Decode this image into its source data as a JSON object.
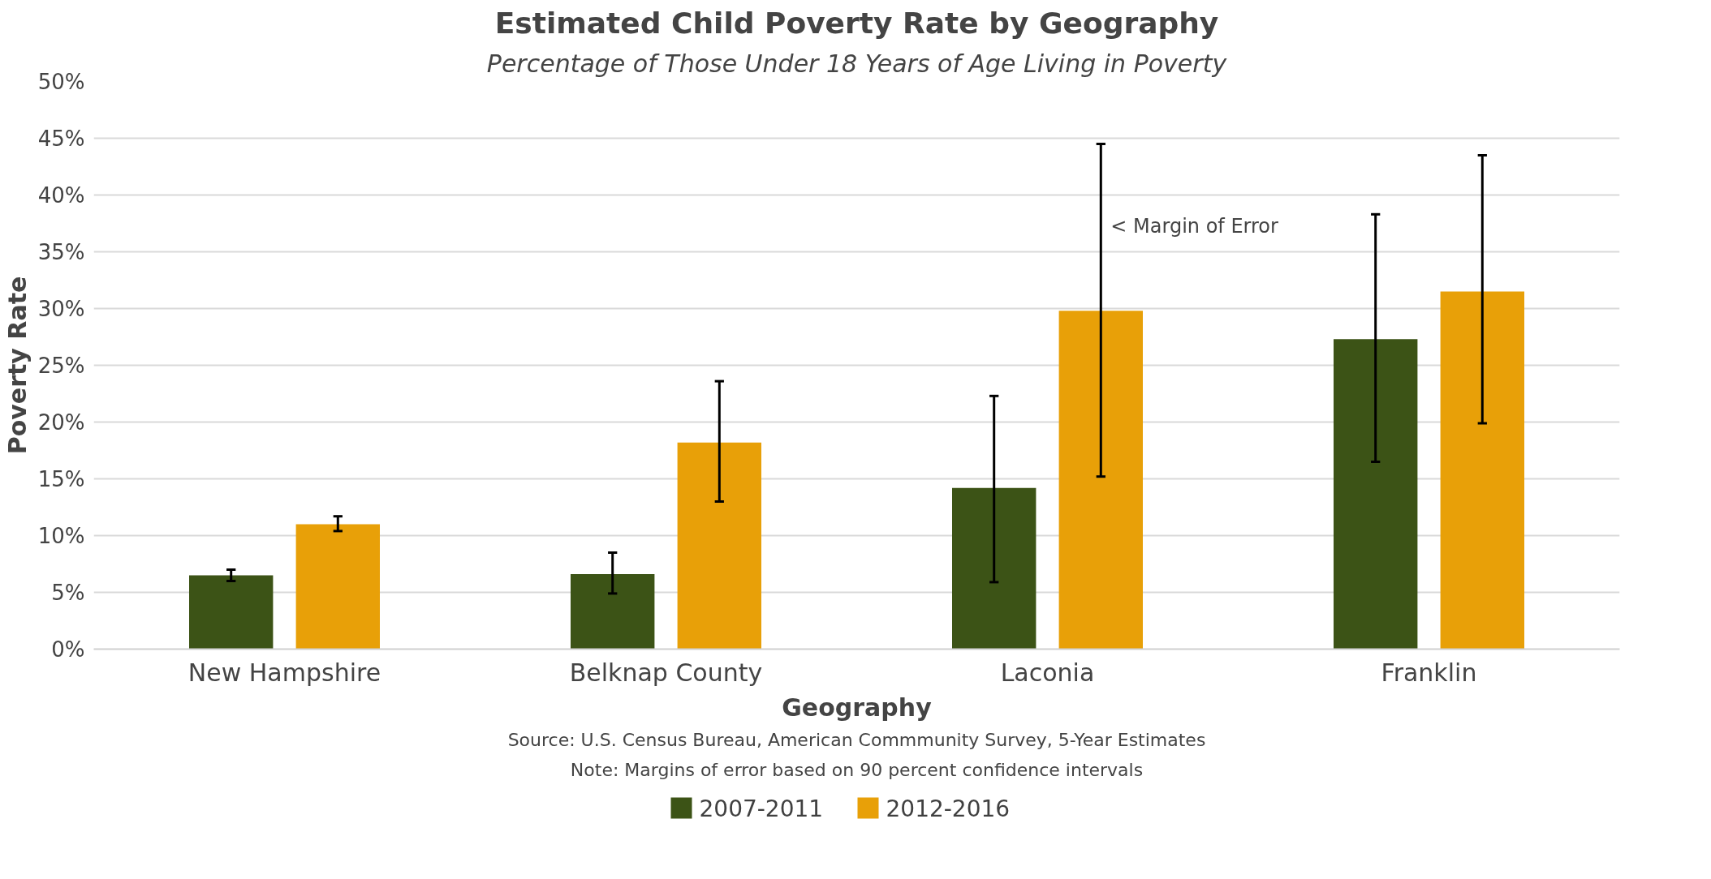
{
  "chart_data": {
    "type": "bar",
    "title": "Estimated Child Poverty Rate by Geography",
    "subtitle": "Percentage of Those Under 18 Years of Age Living in Poverty",
    "xlabel": "Geography",
    "ylabel": "Poverty Rate",
    "categories": [
      "New Hampshire",
      "Belknap County",
      "Laconia",
      "Franklin"
    ],
    "series": [
      {
        "name": "2007-2011",
        "color": "#3c5316",
        "values": [
          6.5,
          6.6,
          14.2,
          27.3
        ],
        "errors": [
          [
            6.0,
            7.0
          ],
          [
            4.9,
            8.5
          ],
          [
            5.9,
            22.3
          ],
          [
            16.5,
            38.3
          ]
        ]
      },
      {
        "name": "2012-2016",
        "color": "#e8a008",
        "values": [
          11.0,
          18.2,
          29.8,
          31.5
        ],
        "errors": [
          [
            10.4,
            11.7
          ],
          [
            13.0,
            23.6
          ],
          [
            15.2,
            44.5
          ],
          [
            19.9,
            43.5
          ]
        ]
      }
    ],
    "ylim": [
      0,
      50
    ],
    "yticks": [
      {
        "value": 0,
        "label": "0%"
      },
      {
        "value": 5,
        "label": "5%"
      },
      {
        "value": 10,
        "label": "10%"
      },
      {
        "value": 15,
        "label": "15%"
      },
      {
        "value": 20,
        "label": "20%"
      },
      {
        "value": 25,
        "label": "25%"
      },
      {
        "value": 30,
        "label": "30%"
      },
      {
        "value": 35,
        "label": "35%"
      },
      {
        "value": 40,
        "label": "40%"
      },
      {
        "value": 45,
        "label": "45%"
      },
      {
        "value": 50,
        "label": "50%"
      }
    ],
    "grid": "y",
    "legend": "bottom",
    "annotations": [
      "< Margin of Error",
      "Source: U.S. Census Bureau, American Commmunity Survey, 5-Year Estimates",
      "Note: Margins of error based on 90 percent confidence intervals"
    ]
  }
}
